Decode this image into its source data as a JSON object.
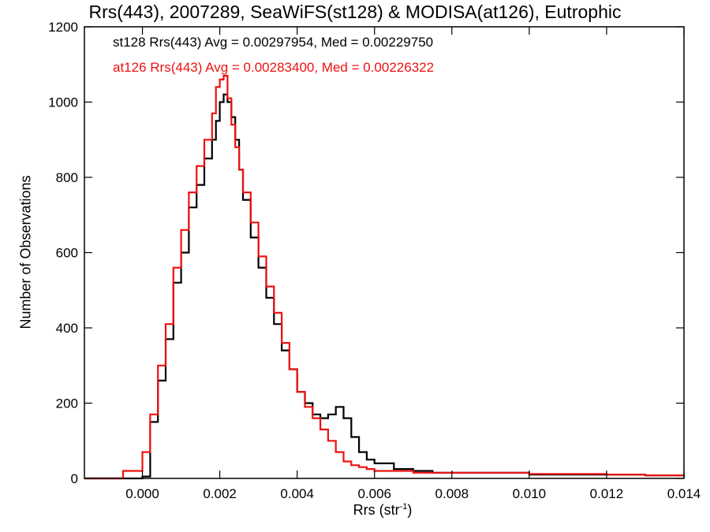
{
  "chart_data": {
    "type": "line",
    "title": "Rrs(443), 2007289, SeaWiFS(st128) & MODISA(at126), Eutrophic",
    "xlabel_main": "Rrs (str",
    "xlabel_sup": "-1",
    "xlabel_end": ")",
    "ylabel": "Number of Observations",
    "xlim": [
      -0.0015,
      0.014
    ],
    "ylim": [
      0,
      1200
    ],
    "x_ticks": [
      0.0,
      0.002,
      0.004,
      0.006,
      0.008,
      0.01,
      0.012,
      0.014
    ],
    "x_tick_labels": [
      "0.000",
      "0.002",
      "0.004",
      "0.006",
      "0.008",
      "0.010",
      "0.012",
      "0.014"
    ],
    "y_ticks": [
      0,
      200,
      400,
      600,
      800,
      1000,
      1200
    ],
    "y_tick_labels": [
      "0",
      "200",
      "400",
      "600",
      "800",
      "1000",
      "1200"
    ],
    "grid": false,
    "legend_placement": "top-left",
    "series": [
      {
        "name": "st128 Rrs(443) Avg = 0.00297954, Med = 0.00229750",
        "color": "#000000",
        "style": "step",
        "x": [
          -0.0015,
          -0.001,
          -0.0005,
          0.0,
          0.0002,
          0.0004,
          0.0006,
          0.0008,
          0.001,
          0.0012,
          0.0014,
          0.0016,
          0.0018,
          0.0019,
          0.002,
          0.0021,
          0.0022,
          0.0023,
          0.0024,
          0.0025,
          0.0026,
          0.0028,
          0.003,
          0.0032,
          0.0034,
          0.0036,
          0.0038,
          0.004,
          0.0042,
          0.0044,
          0.0046,
          0.0048,
          0.005,
          0.0052,
          0.0054,
          0.0056,
          0.0058,
          0.006,
          0.0065,
          0.007,
          0.0075,
          0.008,
          0.009,
          0.01,
          0.011,
          0.012,
          0.013,
          0.014
        ],
        "y": [
          0,
          0,
          0,
          5,
          150,
          260,
          370,
          520,
          600,
          720,
          780,
          850,
          900,
          950,
          1000,
          1020,
          1000,
          960,
          900,
          820,
          740,
          640,
          560,
          480,
          410,
          340,
          290,
          230,
          200,
          170,
          160,
          170,
          190,
          160,
          110,
          70,
          50,
          40,
          25,
          20,
          15,
          15,
          15,
          10,
          10,
          10,
          8,
          5
        ]
      },
      {
        "name": "at126 Rrs(443) Avg = 0.00283400, Med = 0.00226322",
        "color": "#ee1111",
        "style": "step",
        "x": [
          -0.0015,
          -0.001,
          -0.0005,
          0.0,
          0.0002,
          0.0004,
          0.0006,
          0.0008,
          0.001,
          0.0012,
          0.0014,
          0.0016,
          0.0018,
          0.0019,
          0.002,
          0.0021,
          0.0022,
          0.0023,
          0.0024,
          0.0025,
          0.0026,
          0.0028,
          0.003,
          0.0032,
          0.0034,
          0.0036,
          0.0038,
          0.004,
          0.0042,
          0.0044,
          0.0046,
          0.0048,
          0.005,
          0.0052,
          0.0054,
          0.0056,
          0.0058,
          0.006,
          0.0065,
          0.007,
          0.0075,
          0.008,
          0.009,
          0.01,
          0.011,
          0.012,
          0.013,
          0.014
        ],
        "y": [
          0,
          0,
          20,
          70,
          170,
          300,
          410,
          560,
          660,
          760,
          830,
          900,
          970,
          1040,
          1060,
          1070,
          1010,
          940,
          880,
          820,
          760,
          680,
          590,
          510,
          440,
          360,
          290,
          230,
          190,
          160,
          130,
          100,
          70,
          45,
          35,
          30,
          25,
          20,
          20,
          15,
          15,
          15,
          15,
          12,
          12,
          10,
          8,
          5
        ]
      }
    ]
  }
}
